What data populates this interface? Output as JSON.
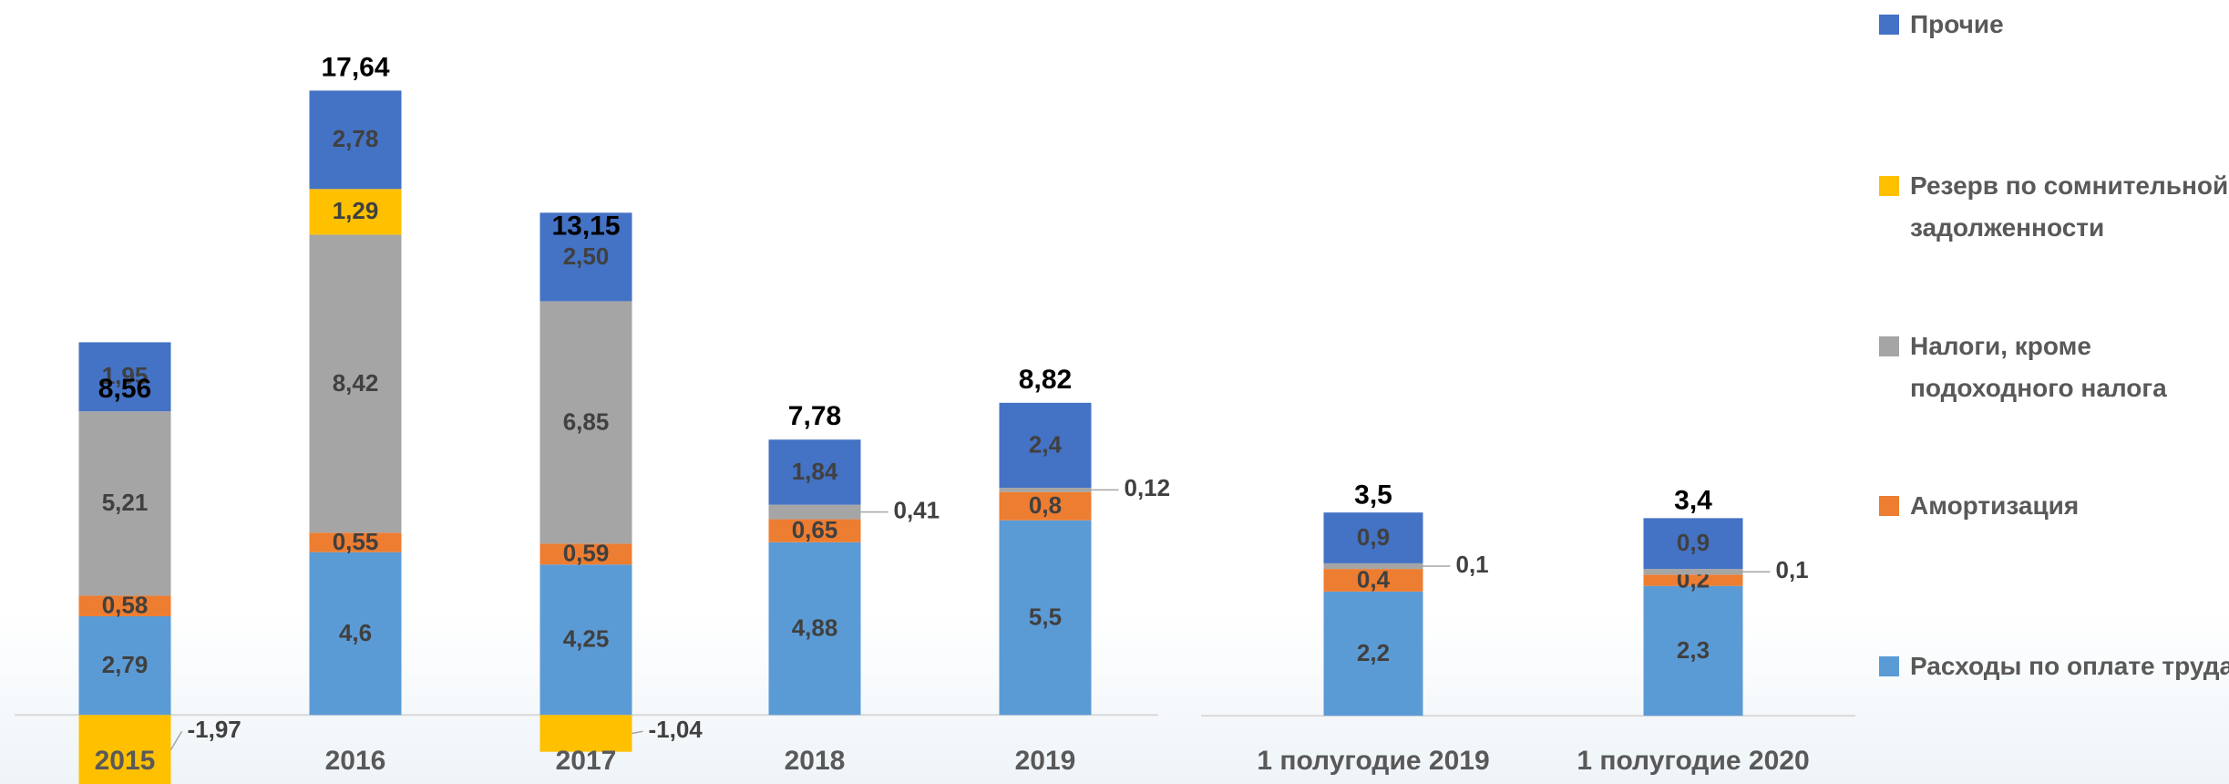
{
  "chart_data": [
    {
      "type": "bar",
      "stacked": true,
      "categories": [
        "2015",
        "2016",
        "2017",
        "2018",
        "2019"
      ],
      "ylim": [
        -1.95,
        20.2
      ],
      "series": [
        {
          "name": "Расходы по оплате труда",
          "color": "#5b9bd5",
          "values": [
            2.79,
            4.6,
            4.25,
            4.88,
            5.5
          ],
          "value_labels": [
            "2,79",
            "4,6",
            "4,25",
            "4,88",
            "5,5"
          ]
        },
        {
          "name": "Амортизация",
          "color": "#ed7d31",
          "values": [
            0.58,
            0.55,
            0.59,
            0.65,
            0.8
          ],
          "value_labels": [
            "0,58",
            "0,55",
            "0,59",
            "0,65",
            "0,8"
          ]
        },
        {
          "name": "Налоги, кроме подоходного налога",
          "color": "#a5a5a5",
          "values": [
            5.21,
            8.42,
            6.85,
            0.41,
            0.12
          ],
          "value_labels": [
            "5,21",
            "8,42",
            "6,85",
            "0,41",
            "0,12"
          ]
        },
        {
          "name": "Резерв по сомнительной задолженности",
          "color": "#ffc000",
          "values": [
            -1.97,
            1.29,
            -1.04,
            null,
            null
          ],
          "value_labels": [
            "-1,97",
            "1,29",
            "-1,04",
            null,
            null
          ]
        },
        {
          "name": "Прочие",
          "color": "#4472c4",
          "values": [
            1.95,
            2.78,
            2.5,
            1.84,
            2.4
          ],
          "value_labels": [
            "1,95",
            "2,78",
            "2,50",
            "1,84",
            "2,4"
          ]
        }
      ],
      "totals": [
        8.56,
        17.64,
        13.15,
        7.78,
        8.82
      ],
      "total_labels": [
        "8,56",
        "17,64",
        "13,15",
        "7,78",
        "8,82"
      ]
    },
    {
      "type": "bar",
      "stacked": true,
      "categories": [
        "1 полугодие 2019",
        "1 полугодие 2020"
      ],
      "ylim": [
        -1.21,
        12.68
      ],
      "series": [
        {
          "color": "#5b9bd5",
          "values": [
            2.2,
            2.3
          ],
          "value_labels": [
            "2,2",
            "2,3"
          ]
        },
        {
          "color": "#ed7d31",
          "values": [
            0.4,
            0.2
          ],
          "value_labels": [
            "0,4",
            "0,2"
          ]
        },
        {
          "color": "#a5a5a5",
          "values": [
            0.1,
            0.1
          ],
          "value_labels": [
            "0,1",
            "0,1"
          ]
        },
        {
          "color": "#ffc000",
          "values": [
            null,
            null
          ],
          "value_labels": [
            null,
            null
          ]
        },
        {
          "color": "#4472c4",
          "values": [
            0.9,
            0.9
          ],
          "value_labels": [
            "0,9",
            "0,9"
          ]
        }
      ],
      "totals": [
        3.5,
        3.4
      ],
      "total_labels": [
        "3,5",
        "3,4"
      ]
    }
  ]
}
